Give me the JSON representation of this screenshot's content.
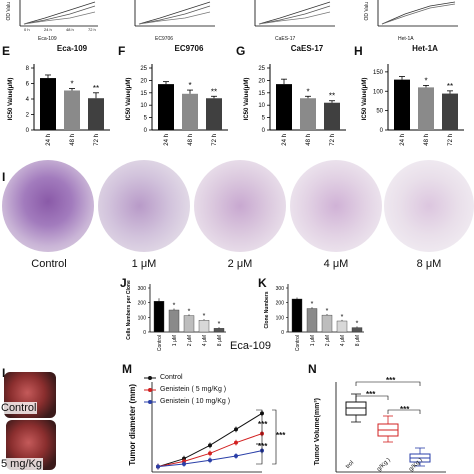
{
  "top_strip": {
    "left_axis": "OD Valu",
    "right_axis": "OD Valu",
    "cells": [
      "Eca-109",
      "EC9706",
      "CaES-17",
      "Het-1A"
    ],
    "ticks": [
      "0 h",
      "24 h",
      "48 h",
      "72 h"
    ]
  },
  "bar_panels": [
    {
      "letter": "E",
      "title": "Eca-109",
      "ylabel": "IC50 Value(μM)",
      "yticks": [
        "0",
        "2",
        "4",
        "6",
        "8"
      ],
      "ymax": 8,
      "categories": [
        "24 h",
        "48 h",
        "72 h"
      ],
      "values": [
        6.7,
        5.1,
        4.1
      ],
      "errors": [
        0.4,
        0.25,
        0.7
      ],
      "sig": [
        "",
        "*",
        "**"
      ]
    },
    {
      "letter": "F",
      "title": "EC9706",
      "ylabel": "IC50 Value(μM)",
      "yticks": [
        "0",
        "5",
        "10",
        "15",
        "20",
        "25"
      ],
      "ymax": 25,
      "categories": [
        "24 h",
        "48 h",
        "72 h"
      ],
      "values": [
        18.5,
        14.6,
        12.8
      ],
      "errors": [
        1.0,
        1.5,
        0.8
      ],
      "sig": [
        "",
        "*",
        "**"
      ]
    },
    {
      "letter": "G",
      "title": "CaES-17",
      "ylabel": "IC50 Value(μM)",
      "yticks": [
        "0",
        "5",
        "10",
        "15",
        "20",
        "25"
      ],
      "ymax": 25,
      "categories": [
        "24 h",
        "48 h",
        "72 h"
      ],
      "values": [
        18.5,
        12.8,
        11.0
      ],
      "errors": [
        2.0,
        0.8,
        0.8
      ],
      "sig": [
        "",
        "*",
        "**"
      ]
    },
    {
      "letter": "H",
      "title": "Het-1A",
      "ylabel": "IC50 Value(μM)",
      "yticks": [
        "0",
        "50",
        "100",
        "150"
      ],
      "ymax": 160,
      "categories": [
        "24 h",
        "48 h",
        "72 h"
      ],
      "values": [
        130,
        110,
        94
      ],
      "errors": [
        8,
        5,
        7
      ],
      "sig": [
        "",
        "*",
        "**"
      ]
    }
  ],
  "panel_i": {
    "letter": "I",
    "labels": [
      "Control",
      "1 μM",
      "2 μM",
      "4 μM",
      "8 μM"
    ]
  },
  "panel_j": {
    "letter": "J",
    "ylabel": "Cells Numbers per Clone",
    "yticks": [
      "0",
      "100",
      "200",
      "300"
    ],
    "ymax": 300,
    "categories": [
      "Control",
      "1 μM",
      "2 μM",
      "4 μM",
      "8 μM"
    ],
    "values": [
      210,
      150,
      112,
      80,
      25
    ],
    "errors": [
      20,
      10,
      8,
      8,
      8
    ],
    "sig": [
      "",
      "*",
      "*",
      "*",
      "*"
    ]
  },
  "panel_k": {
    "letter": "K",
    "ylabel": "Clone Numbers",
    "yticks": [
      "0",
      "100",
      "200",
      "300"
    ],
    "ymax": 300,
    "categories": [
      "Control",
      "1 μM",
      "2 μM",
      "4 μM",
      "8 μM"
    ],
    "values": [
      225,
      160,
      115,
      75,
      30
    ],
    "errors": [
      10,
      10,
      8,
      8,
      8
    ],
    "sig": [
      "",
      "*",
      "*",
      "*",
      "*"
    ]
  },
  "eca_label": "Eca-109",
  "panel_l": {
    "letter": "L",
    "labels": [
      "Control",
      "5 mg/Kg"
    ]
  },
  "panel_m": {
    "letter": "M",
    "ylabel": "Tumor diameter (mm)",
    "legend": [
      "Control",
      "Genistein ( 5 mg/Kg )",
      "Genistein ( 10 mg/Kg )"
    ],
    "colors": [
      "#111111",
      "#d22020",
      "#2a3fa8"
    ],
    "sig": [
      "***",
      "***",
      "***"
    ]
  },
  "panel_n": {
    "letter": "N",
    "ylabel": "Tumor Volume(mm³)",
    "sig": [
      "***",
      "***",
      "***"
    ],
    "categories": [
      "trol",
      "g/Kg )",
      "g/Kg )"
    ],
    "colors": [
      "#111111",
      "#d22020",
      "#2a3fa8"
    ]
  },
  "chart_data": [
    {
      "type": "bar",
      "title": "Eca-109",
      "ylabel": "IC50 Value(μM)",
      "categories": [
        "24 h",
        "48 h",
        "72 h"
      ],
      "values": [
        6.7,
        5.1,
        4.1
      ],
      "ylim": [
        0,
        8
      ]
    },
    {
      "type": "bar",
      "title": "EC9706",
      "ylabel": "IC50 Value(μM)",
      "categories": [
        "24 h",
        "48 h",
        "72 h"
      ],
      "values": [
        18.5,
        14.6,
        12.8
      ],
      "ylim": [
        0,
        25
      ]
    },
    {
      "type": "bar",
      "title": "CaES-17",
      "ylabel": "IC50 Value(μM)",
      "categories": [
        "24 h",
        "48 h",
        "72 h"
      ],
      "values": [
        18.5,
        12.8,
        11.0
      ],
      "ylim": [
        0,
        25
      ]
    },
    {
      "type": "bar",
      "title": "Het-1A",
      "ylabel": "IC50 Value(μM)",
      "categories": [
        "24 h",
        "48 h",
        "72 h"
      ],
      "values": [
        130,
        110,
        94
      ],
      "ylim": [
        0,
        160
      ]
    },
    {
      "type": "bar",
      "ylabel": "Cells Numbers per Clone",
      "categories": [
        "Control",
        "1 μM",
        "2 μM",
        "4 μM",
        "8 μM"
      ],
      "values": [
        210,
        150,
        112,
        80,
        25
      ],
      "ylim": [
        0,
        300
      ]
    },
    {
      "type": "bar",
      "ylabel": "Clone Numbers",
      "categories": [
        "Control",
        "1 μM",
        "2 μM",
        "4 μM",
        "8 μM"
      ],
      "values": [
        225,
        160,
        115,
        75,
        30
      ],
      "ylim": [
        0,
        300
      ]
    },
    {
      "type": "line",
      "ylabel": "Tumor diameter (mm)",
      "series": [
        {
          "name": "Control",
          "values": [
            1,
            2.5,
            5,
            8,
            11
          ]
        },
        {
          "name": "Genistein ( 5 mg/Kg )",
          "values": [
            1,
            2,
            3.5,
            5.5,
            7.2
          ]
        },
        {
          "name": "Genistein ( 10 mg/Kg )",
          "values": [
            1,
            1.5,
            2.2,
            3,
            4
          ]
        }
      ]
    }
  ]
}
